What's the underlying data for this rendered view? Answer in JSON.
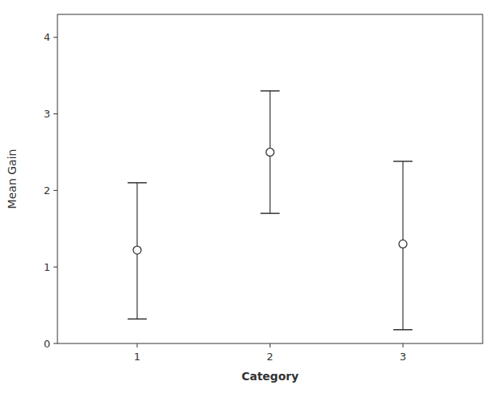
{
  "chart_data": {
    "type": "errorbar",
    "x": [
      1,
      2,
      3
    ],
    "values": [
      1.22,
      2.5,
      1.3
    ],
    "ci_lower": [
      0.32,
      1.7,
      0.18
    ],
    "ci_upper": [
      2.1,
      3.3,
      2.38
    ],
    "xlabel": "Category",
    "ylabel": "Mean Gain",
    "xlim": [
      0.4,
      3.6
    ],
    "xticks": [
      1,
      2,
      3
    ],
    "ylim": [
      0,
      4.3
    ],
    "yticks": [
      0,
      1,
      2,
      3,
      4
    ],
    "color": "#333333",
    "marker": "open-circle",
    "grid": false
  }
}
